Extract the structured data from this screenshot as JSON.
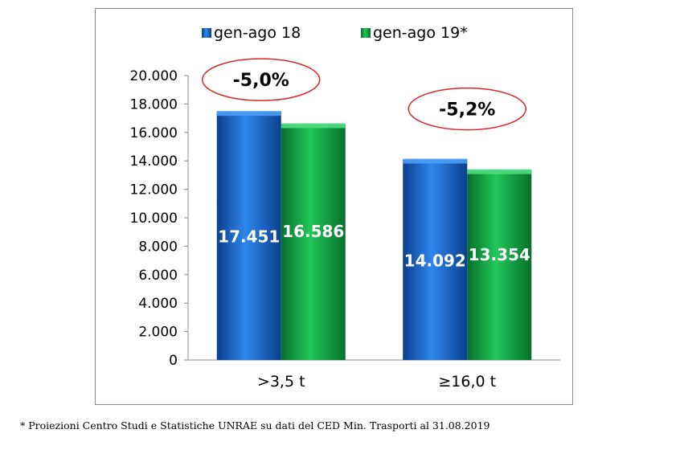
{
  "chart_data": {
    "type": "bar",
    "title": "",
    "xlabel": "",
    "ylabel": "",
    "categories": [
      ">3,5 t",
      "≥16,0 t"
    ],
    "series": [
      {
        "name": "gen-ago 18",
        "values": [
          17451,
          14092
        ],
        "labels": [
          "17.451",
          "14.092"
        ],
        "color": "#1a6fd4"
      },
      {
        "name": "gen-ago 19*",
        "values": [
          16586,
          13354
        ],
        "labels": [
          "16.586",
          "13.354"
        ],
        "color": "#12b34a"
      }
    ],
    "ylim": [
      0,
      20000
    ],
    "yticks": [
      0,
      2000,
      4000,
      6000,
      8000,
      10000,
      12000,
      14000,
      16000,
      18000,
      20000
    ],
    "ytick_labels": [
      "0",
      "2.000",
      "4.000",
      "6.000",
      "8.000",
      "10.000",
      "12.000",
      "14.000",
      "16.000",
      "18.000",
      "20.000"
    ],
    "grid": false,
    "legend": "top",
    "annotations": [
      "-5,0%",
      "-5,2%"
    ],
    "annotation_color": "#d9262b"
  },
  "footnote": "* Proiezioni Centro Studi e Statistiche UNRAE su dati del CED Min. Trasporti al 31.08.2019"
}
